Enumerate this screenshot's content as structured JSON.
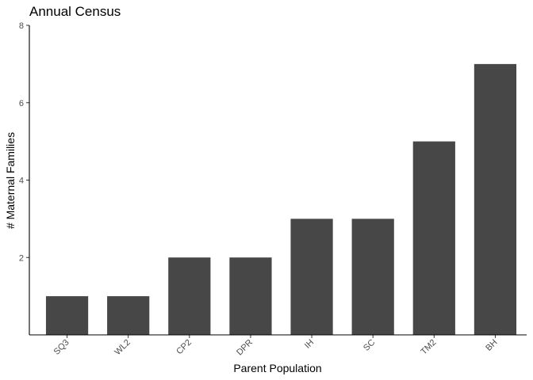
{
  "chart_data": {
    "type": "bar",
    "title": "Annual Census",
    "xlabel": "Parent Population",
    "ylabel": "# Maternal Families",
    "categories": [
      "SQ3",
      "WL2",
      "CP2",
      "DPR",
      "IH",
      "SC",
      "TM2",
      "BH"
    ],
    "values": [
      1,
      1,
      2,
      2,
      3,
      3,
      5,
      7
    ],
    "ylim": [
      0,
      8
    ],
    "yticks": [
      "2",
      "4",
      "6",
      "8"
    ],
    "grid": false,
    "bar_color": "#474747"
  }
}
